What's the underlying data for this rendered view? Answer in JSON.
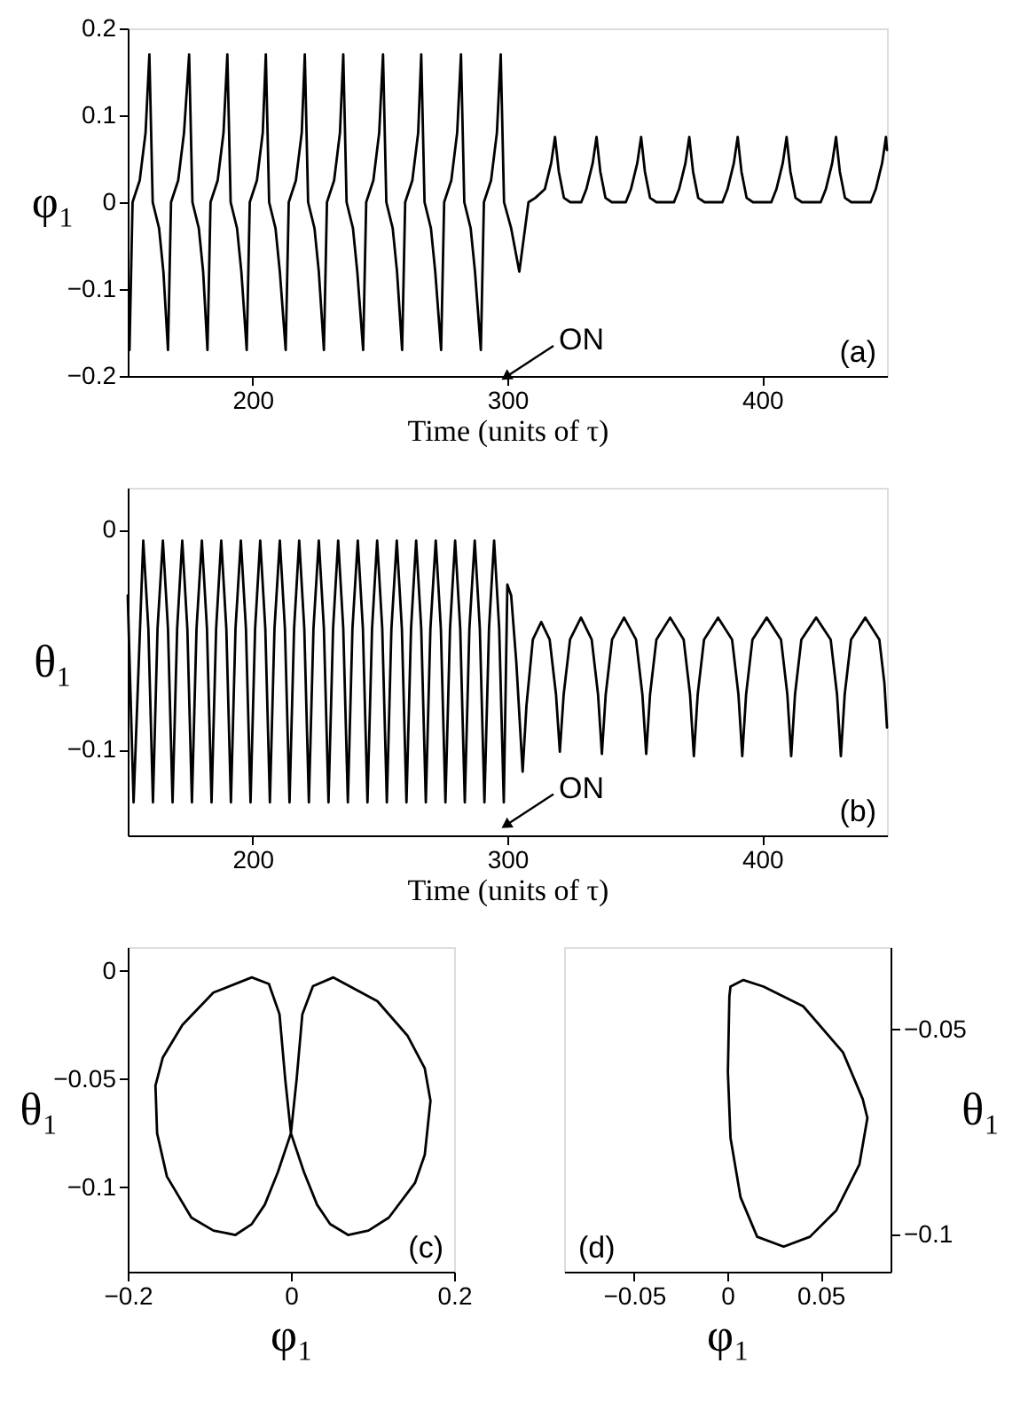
{
  "chart_data": [
    {
      "type": "line",
      "xlabel": "Time (units of τ)",
      "ylabel": "φ₁",
      "xlim": [
        151,
        449
      ],
      "ylim": [
        -0.2,
        0.2
      ],
      "xticks": [
        200,
        300,
        400
      ],
      "yticks": [
        -0.2,
        -0.1,
        0,
        0.1,
        0.2
      ],
      "annotations": [
        {
          "text": "ON",
          "x": 300,
          "y": -0.2
        },
        "(a)"
      ],
      "series": [
        {
          "color": "#000000",
          "x": [
            151.7,
            152.9,
            155.7,
            158.0,
            159.5,
            160.8,
            163.3,
            165.0,
            166.8,
            168.0,
            170.8,
            173.1,
            175.1,
            176.4,
            178.9,
            180.6,
            182.3,
            183.5,
            186.3,
            188.6,
            190.1,
            191.4,
            193.9,
            195.6,
            197.7,
            198.9,
            201.7,
            204.0,
            205.2,
            206.5,
            209.0,
            210.7,
            213.0,
            214.2,
            217.0,
            219.3,
            220.5,
            221.8,
            224.3,
            226.0,
            228.0,
            229.2,
            232.0,
            234.3,
            235.6,
            236.9,
            239.4,
            241.1,
            243.4,
            244.6,
            247.4,
            249.7,
            251.2,
            252.5,
            255.0,
            256.7,
            258.7,
            259.9,
            262.7,
            265.0,
            266.2,
            267.5,
            270.0,
            271.7,
            274.0,
            275.2,
            278.0,
            280.3,
            281.8,
            283.1,
            285.6,
            287.3,
            289.6,
            290.8,
            293.6,
            295.9,
            297.4,
            298.7,
            301.5,
            304.7,
            308.3,
            311.0,
            314.7,
            317.2,
            318.7,
            320.2,
            322.2,
            324.7,
            329.0,
            331.0,
            333.5,
            335.0,
            336.5,
            338.5,
            341.0,
            346.5,
            348.5,
            351.0,
            352.5,
            354.0,
            356.0,
            358.5,
            365.4,
            367.4,
            369.9,
            371.4,
            372.9,
            374.9,
            377.4,
            384.4,
            386.4,
            388.9,
            390.4,
            391.9,
            393.9,
            396.4,
            403.6,
            405.6,
            408.1,
            409.6,
            411.1,
            413.1,
            415.6,
            423.0,
            425.0,
            427.5,
            429.0,
            430.5,
            432.5,
            435.0,
            442.6,
            444.6,
            447.1,
            448.6,
            449.0
          ],
          "values": [
            -0.17,
            0,
            0.025,
            0.08,
            0.17,
            0,
            -0.03,
            -0.08,
            -0.17,
            0,
            0.025,
            0.08,
            0.17,
            0,
            -0.03,
            -0.08,
            -0.17,
            0,
            0.025,
            0.08,
            0.17,
            0,
            -0.03,
            -0.08,
            -0.17,
            0,
            0.025,
            0.08,
            0.17,
            0,
            -0.03,
            -0.08,
            -0.17,
            0,
            0.025,
            0.08,
            0.17,
            0,
            -0.03,
            -0.08,
            -0.17,
            0,
            0.025,
            0.08,
            0.17,
            0,
            -0.03,
            -0.08,
            -0.17,
            0,
            0.025,
            0.08,
            0.17,
            0,
            -0.03,
            -0.08,
            -0.17,
            0,
            0.025,
            0.08,
            0.17,
            0,
            -0.03,
            -0.08,
            -0.17,
            0,
            0.025,
            0.08,
            0.17,
            0,
            -0.03,
            -0.08,
            -0.17,
            0,
            0.025,
            0.08,
            0.17,
            0,
            -0.03,
            -0.08,
            0,
            0.005,
            0.015,
            0.045,
            0.075,
            0.035,
            0.005,
            0,
            0,
            0.015,
            0.045,
            0.075,
            0.035,
            0.005,
            0,
            0,
            0.015,
            0.045,
            0.075,
            0.035,
            0.005,
            0,
            0,
            0.015,
            0.045,
            0.075,
            0.035,
            0.005,
            0,
            0,
            0.015,
            0.045,
            0.075,
            0.035,
            0.005,
            0,
            0,
            0.015,
            0.045,
            0.075,
            0.035,
            0.005,
            0,
            0,
            0.015,
            0.045,
            0.075,
            0.035,
            0.005,
            0,
            0,
            0.015,
            0.045,
            0.075,
            0.06
          ]
        }
      ]
    },
    {
      "type": "line",
      "xlabel": "Time (units of τ)",
      "ylabel": "θ₁",
      "xlim": [
        151,
        449
      ],
      "ylim": [
        -0.139,
        0.019
      ],
      "xticks": [
        200,
        300,
        400
      ],
      "yticks": [
        -0.1,
        0
      ],
      "annotations": [
        {
          "text": "ON",
          "x": 300,
          "y": -0.134
        },
        "(b)"
      ],
      "series": [
        {
          "color": "#000000",
          "x": [
            151.0,
            153.3,
            157.1,
            159.1,
            160.9,
            162.7,
            164.8,
            166.8,
            168.6,
            170.4,
            172.4,
            174.4,
            176.2,
            178.0,
            180.1,
            182.1,
            183.9,
            185.7,
            187.7,
            189.7,
            191.5,
            193.3,
            195.4,
            197.4,
            199.2,
            201.0,
            203.0,
            205.0,
            206.8,
            208.6,
            210.7,
            212.7,
            214.5,
            216.3,
            218.3,
            220.3,
            222.1,
            223.9,
            226.0,
            228.0,
            229.8,
            231.6,
            233.6,
            235.6,
            237.4,
            239.2,
            241.3,
            243.3,
            245.1,
            246.9,
            248.9,
            250.9,
            252.7,
            254.5,
            256.6,
            258.6,
            260.4,
            262.2,
            264.2,
            266.2,
            268.0,
            269.8,
            271.9,
            273.9,
            275.7,
            277.5,
            279.5,
            281.5,
            283.3,
            285.1,
            287.2,
            289.2,
            291.0,
            292.8,
            294.8,
            296.8,
            298.6,
            300.0,
            301.5,
            303.5,
            306.0,
            307.5,
            310.0,
            313.3,
            316.6,
            319.1,
            320.6,
            322.1,
            324.6,
            328.9,
            333.1,
            335.6,
            337.1,
            338.6,
            341.1,
            345.8,
            350.5,
            353.0,
            354.5,
            356.0,
            358.5,
            363.9,
            369.2,
            371.7,
            373.2,
            374.7,
            377.2,
            382.7,
            388.2,
            390.7,
            392.2,
            393.7,
            396.2,
            401.8,
            407.4,
            409.9,
            411.4,
            412.9,
            415.4,
            421.2,
            426.9,
            429.4,
            430.9,
            432.4,
            434.9,
            440.5,
            446.0,
            448.0,
            449.0
          ],
          "values": [
            -0.03,
            -0.124,
            -0.005,
            -0.045,
            -0.124,
            -0.045,
            -0.005,
            -0.045,
            -0.124,
            -0.045,
            -0.005,
            -0.045,
            -0.124,
            -0.045,
            -0.005,
            -0.045,
            -0.124,
            -0.045,
            -0.005,
            -0.045,
            -0.124,
            -0.045,
            -0.005,
            -0.045,
            -0.124,
            -0.045,
            -0.005,
            -0.045,
            -0.124,
            -0.045,
            -0.005,
            -0.045,
            -0.124,
            -0.045,
            -0.005,
            -0.045,
            -0.124,
            -0.045,
            -0.005,
            -0.045,
            -0.124,
            -0.045,
            -0.005,
            -0.045,
            -0.124,
            -0.045,
            -0.005,
            -0.045,
            -0.124,
            -0.045,
            -0.005,
            -0.045,
            -0.124,
            -0.045,
            -0.005,
            -0.045,
            -0.124,
            -0.045,
            -0.005,
            -0.045,
            -0.124,
            -0.045,
            -0.005,
            -0.045,
            -0.124,
            -0.045,
            -0.005,
            -0.045,
            -0.124,
            -0.045,
            -0.005,
            -0.045,
            -0.124,
            -0.045,
            -0.005,
            -0.045,
            -0.124,
            -0.025,
            -0.03,
            -0.06,
            -0.11,
            -0.08,
            -0.05,
            -0.042,
            -0.05,
            -0.075,
            -0.101,
            -0.075,
            -0.05,
            -0.04,
            -0.05,
            -0.075,
            -0.102,
            -0.075,
            -0.05,
            -0.04,
            -0.05,
            -0.075,
            -0.102,
            -0.075,
            -0.05,
            -0.04,
            -0.05,
            -0.075,
            -0.103,
            -0.075,
            -0.05,
            -0.04,
            -0.05,
            -0.075,
            -0.103,
            -0.075,
            -0.05,
            -0.04,
            -0.05,
            -0.075,
            -0.103,
            -0.075,
            -0.05,
            -0.04,
            -0.05,
            -0.075,
            -0.103,
            -0.075,
            -0.05,
            -0.04,
            -0.05,
            -0.07,
            -0.09
          ]
        }
      ]
    },
    {
      "type": "line",
      "xlabel": "φ₁",
      "ylabel": "θ₁",
      "xlim": [
        -0.2,
        0.2
      ],
      "ylim": [
        -0.139,
        0.011
      ],
      "xticks": [
        -0.2,
        0,
        0.2
      ],
      "yticks": [
        -0.1,
        -0.05,
        0
      ],
      "annotations": [
        "(c)"
      ],
      "series": [
        {
          "color": "#000000",
          "x": [
            -0.166,
            -0.157,
            -0.133,
            -0.095,
            -0.048,
            -0.027,
            -0.014,
            -0.007,
            0,
            0.007,
            0.014,
            0.027,
            0.052,
            0.106,
            0.143,
            0.164,
            0.171,
            null,
            -0.166,
            -0.164,
            -0.152,
            -0.122,
            -0.095,
            -0.068,
            -0.048,
            -0.032,
            -0.016,
            0,
            0.016,
            0.032,
            0.048,
            0.07,
            0.095,
            0.12,
            0.152,
            0.164,
            0.171
          ],
          "values": [
            -0.053,
            -0.04,
            -0.025,
            -0.01,
            -0.003,
            -0.006,
            -0.02,
            -0.05,
            -0.075,
            -0.05,
            -0.02,
            -0.007,
            -0.003,
            -0.014,
            -0.03,
            -0.045,
            -0.06,
            null,
            -0.053,
            -0.075,
            -0.095,
            -0.114,
            -0.12,
            -0.122,
            -0.117,
            -0.108,
            -0.093,
            -0.075,
            -0.093,
            -0.108,
            -0.117,
            -0.122,
            -0.12,
            -0.114,
            -0.098,
            -0.085,
            -0.06
          ]
        }
      ]
    },
    {
      "type": "line",
      "xlabel": "φ₁",
      "y2label": "θ₁",
      "xlim": [
        -0.0875,
        0.0875
      ],
      "y2lim": [
        -0.109,
        -0.03
      ],
      "xticks": [
        -0.05,
        0,
        0.05
      ],
      "y2ticks": [
        -0.1,
        -0.05
      ],
      "annotations": [
        "(d)"
      ],
      "series": [
        {
          "color": "#000000",
          "axis": "y2",
          "x": [
            0.0003,
            0.0011,
            0.0017,
            0.0086,
            0.0194,
            0.0407,
            0.062,
            0.0726,
            0.0751,
            null,
            0.0003,
            0.0017,
            0.0071,
            0.016,
            0.0302,
            0.0443,
            0.0584,
            0.0708,
            0.0751
          ],
          "values": [
            -0.0604,
            -0.042,
            -0.0396,
            -0.038,
            -0.0396,
            -0.0444,
            -0.0556,
            -0.067,
            -0.0716,
            null,
            -0.0604,
            -0.0764,
            -0.0909,
            -0.1005,
            -0.1029,
            -0.1005,
            -0.0941,
            -0.0829,
            -0.0716
          ]
        }
      ]
    }
  ]
}
